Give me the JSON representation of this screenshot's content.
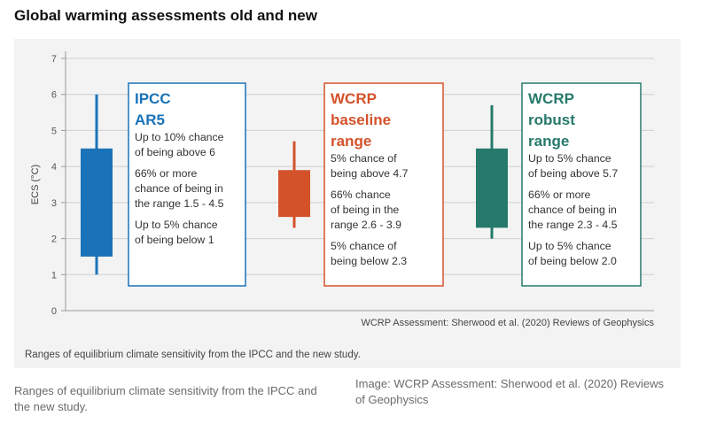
{
  "page": {
    "title": "Global warming assessments old and new",
    "caption": "Ranges of equilibrium climate sensitivity from the IPCC and the new study.",
    "credit": "Image: WCRP Assessment: Sherwood et al. (2020) Reviews of Geophysics"
  },
  "figure": {
    "inner_caption": "Ranges of equilibrium climate sensitivity from the IPCC and the new study.",
    "source": "WCRP Assessment: Sherwood et al. (2020) Reviews of Geophysics"
  },
  "chart_data": {
    "type": "box",
    "ylabel": "ECS (°C)",
    "ylim": [
      0,
      7
    ],
    "yticks": [
      0,
      1,
      2,
      3,
      4,
      5,
      6,
      7
    ],
    "grid": true,
    "series": [
      {
        "title_lines": [
          "IPCC",
          "AR5"
        ],
        "color": "#1a73b8",
        "low": 1,
        "box_low": 1.5,
        "box_high": 4.5,
        "high": 6,
        "notes": [
          [
            "Up to 10% chance",
            "of being above 6"
          ],
          [
            "66% or more",
            "chance of being in",
            "the range 1.5 - 4.5"
          ],
          [
            "Up to 5% chance",
            "of being below 1"
          ]
        ]
      },
      {
        "title_lines": [
          "WCRP",
          "baseline",
          "range"
        ],
        "color": "#d4522a",
        "low": 2.3,
        "box_low": 2.6,
        "box_high": 3.9,
        "high": 4.7,
        "notes": [
          [
            "5% chance of",
            "being above 4.7"
          ],
          [
            "66% chance",
            "of being in the",
            "range 2.6 - 3.9"
          ],
          [
            "5% chance of",
            "being below 2.3"
          ]
        ]
      },
      {
        "title_lines": [
          "WCRP",
          "robust",
          "range"
        ],
        "color": "#267a6b",
        "low": 2.0,
        "box_low": 2.3,
        "box_high": 4.5,
        "high": 5.7,
        "notes": [
          [
            "Up to 5% chance",
            "of being above 5.7"
          ],
          [
            "66% or more",
            "chance of being in",
            "the range 2.3 - 4.5"
          ],
          [
            "Up to 5% chance",
            "of being below 2.0"
          ]
        ]
      }
    ]
  }
}
